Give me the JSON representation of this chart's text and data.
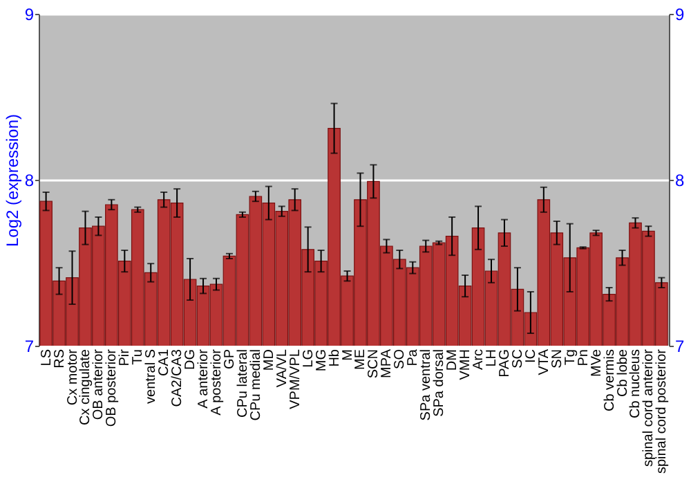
{
  "chart_data": {
    "type": "bar",
    "ylabel": "Log2 (expression)",
    "categories": [
      "LS",
      "RS",
      "Cx motor",
      "Cx cingulate",
      "OB anterior",
      "OB posterior",
      "Pir",
      "Tu",
      "ventral S",
      "CA1",
      "CA2/CA3",
      "DG",
      "A anterior",
      "A posterior",
      "GP",
      "CPu lateral",
      "CPu medial",
      "MD",
      "VA/VL",
      "VPM/VPL",
      "LG",
      "MG",
      "Hb",
      "M",
      "ME",
      "SCN",
      "MPA",
      "SO",
      "Pa",
      "SPa ventral",
      "SPa dorsal",
      "DM",
      "VMH",
      "Arc",
      "LH",
      "PAG",
      "SC",
      "IC",
      "VTA",
      "SN",
      "Tg",
      "Pn",
      "MVe",
      "Cb vermis",
      "Cb lobe",
      "Cb nucleus",
      "spinal cord anterior",
      "spinal cord posterior"
    ],
    "values": [
      7.87,
      7.39,
      7.41,
      7.71,
      7.72,
      7.85,
      7.51,
      7.82,
      7.44,
      7.88,
      7.86,
      7.4,
      7.36,
      7.37,
      7.54,
      7.79,
      7.9,
      7.86,
      7.81,
      7.88,
      7.58,
      7.51,
      8.31,
      7.42,
      7.88,
      7.99,
      7.6,
      7.52,
      7.47,
      7.6,
      7.62,
      7.66,
      7.36,
      7.71,
      7.45,
      7.68,
      7.34,
      7.2,
      7.88,
      7.68,
      7.53,
      7.59,
      7.68,
      7.31,
      7.53,
      7.74,
      7.69,
      7.38
    ],
    "errors": [
      0.055,
      0.08,
      0.16,
      0.1,
      0.055,
      0.03,
      0.065,
      0.015,
      0.055,
      0.045,
      0.085,
      0.125,
      0.045,
      0.035,
      0.015,
      0.015,
      0.03,
      0.1,
      0.03,
      0.065,
      0.135,
      0.065,
      0.15,
      0.03,
      0.16,
      0.1,
      0.04,
      0.055,
      0.035,
      0.035,
      0.01,
      0.115,
      0.065,
      0.13,
      0.07,
      0.08,
      0.13,
      0.125,
      0.075,
      0.07,
      0.205,
      0.005,
      0.015,
      0.04,
      0.045,
      0.03,
      0.03,
      0.03
    ],
    "color": "#b83434",
    "ylim": [
      7,
      9
    ],
    "yticks": [
      7,
      8,
      9
    ],
    "y2lim": [
      7,
      9
    ],
    "y2ticks": [
      7,
      8,
      9
    ],
    "grid": "y"
  }
}
